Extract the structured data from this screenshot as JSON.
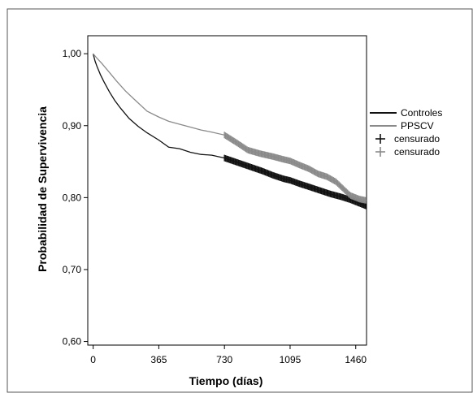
{
  "chart_data": {
    "type": "line",
    "title": "",
    "xlabel": "Tiempo (días)",
    "ylabel": "Probabilidad de Supervivencia",
    "xlim": [
      -30,
      1520
    ],
    "ylim": [
      0.595,
      1.025
    ],
    "x_ticks": [
      0,
      365,
      730,
      1095,
      1460
    ],
    "x_tick_labels": [
      "0",
      "365",
      "730",
      "1095",
      "1460"
    ],
    "y_ticks": [
      0.6,
      0.7,
      0.8,
      0.9,
      1.0
    ],
    "y_tick_labels": [
      "0,60",
      "0,70",
      "0,80",
      "0,90",
      "1,00"
    ],
    "grid": false,
    "legend_position": "right",
    "legend": [
      {
        "label": "Controles",
        "kind": "line",
        "color": "#111111"
      },
      {
        "label": "PPSCV",
        "kind": "line",
        "color": "#8a8a8a"
      },
      {
        "label": "censurado",
        "kind": "censor",
        "color": "#111111"
      },
      {
        "label": "censurado",
        "kind": "censor",
        "color": "#8a8a8a"
      }
    ],
    "series": [
      {
        "name": "Controles",
        "color": "#111111",
        "x": [
          0,
          10,
          20,
          40,
          60,
          90,
          120,
          150,
          200,
          250,
          300,
          365,
          420,
          480,
          540,
          600,
          660,
          730,
          800,
          870,
          940,
          1000,
          1060,
          1095,
          1150,
          1200,
          1260,
          1320,
          1380,
          1430,
          1460,
          1480,
          1500,
          1520
        ],
        "y": [
          1.0,
          0.99,
          0.983,
          0.971,
          0.961,
          0.947,
          0.935,
          0.925,
          0.91,
          0.899,
          0.89,
          0.88,
          0.87,
          0.868,
          0.863,
          0.86,
          0.859,
          0.855,
          0.849,
          0.843,
          0.837,
          0.831,
          0.826,
          0.824,
          0.819,
          0.815,
          0.81,
          0.805,
          0.801,
          0.797,
          0.794,
          0.792,
          0.79,
          0.788
        ],
        "censored_from": 730
      },
      {
        "name": "PPSCV",
        "color": "#8a8a8a",
        "x": [
          0,
          20,
          50,
          90,
          130,
          180,
          240,
          300,
          365,
          420,
          480,
          540,
          600,
          660,
          730,
          800,
          860,
          930,
          1000,
          1060,
          1095,
          1150,
          1200,
          1250,
          1300,
          1350,
          1400,
          1430,
          1460,
          1480,
          1500,
          1520
        ],
        "y": [
          1.0,
          0.994,
          0.986,
          0.974,
          0.962,
          0.948,
          0.934,
          0.92,
          0.912,
          0.906,
          0.902,
          0.898,
          0.894,
          0.891,
          0.887,
          0.876,
          0.866,
          0.861,
          0.857,
          0.853,
          0.851,
          0.845,
          0.84,
          0.833,
          0.829,
          0.822,
          0.81,
          0.803,
          0.8,
          0.798,
          0.797,
          0.796
        ],
        "censored_from": 730
      }
    ]
  }
}
